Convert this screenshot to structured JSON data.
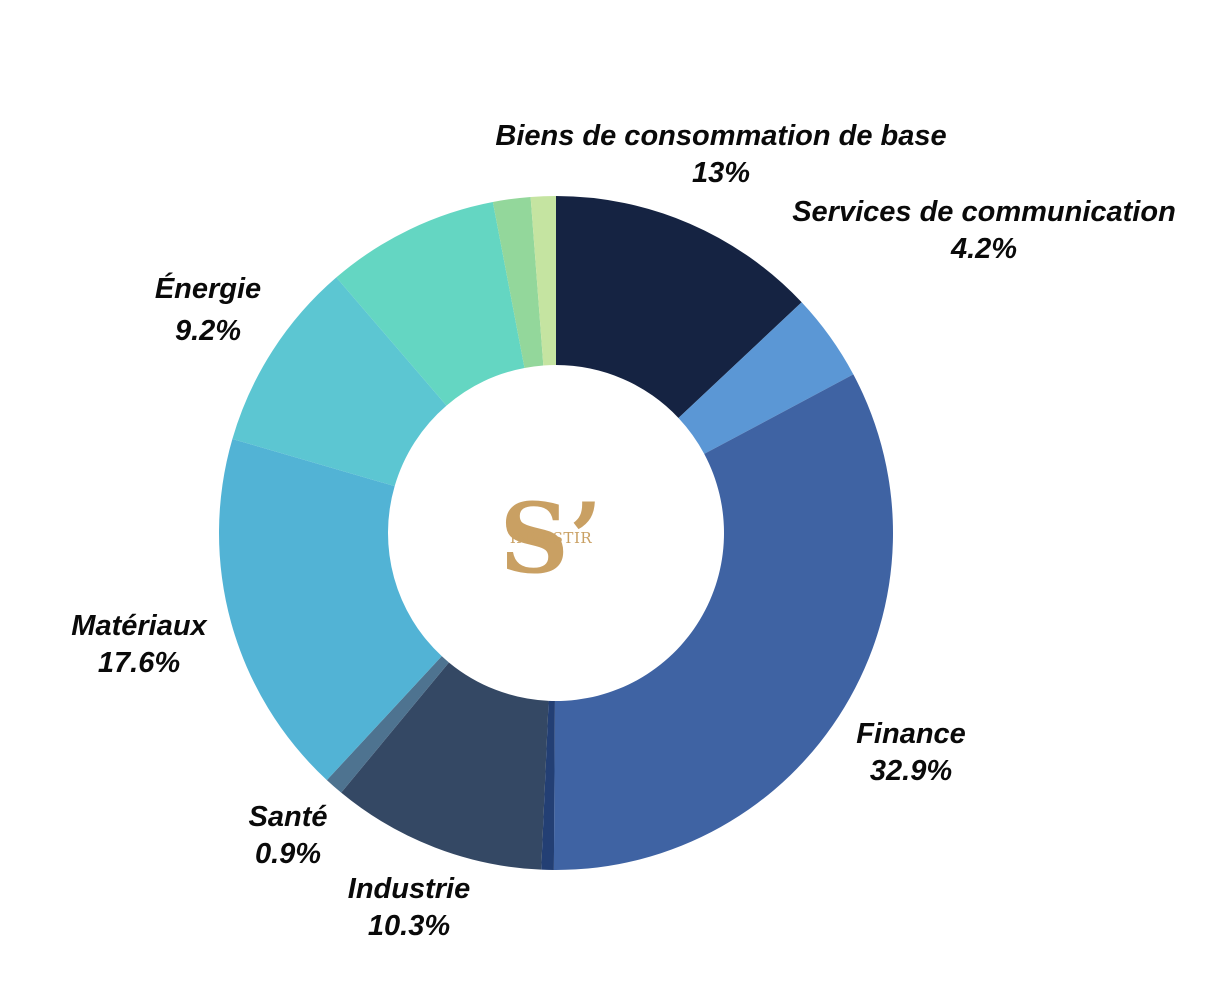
{
  "chart_data": {
    "type": "pie",
    "categories": [
      "Biens de consommation de base",
      "Services de communication",
      "Finance",
      "",
      "Industrie",
      "Santé",
      "Matériaux",
      "Énergie",
      "",
      "",
      ""
    ],
    "values": [
      13,
      4.2,
      32.9,
      0.6,
      10.3,
      0.9,
      17.6,
      9.2,
      8.3,
      1.8,
      1.2
    ],
    "labels": [
      {
        "name": "Biens de consommation de base",
        "value_label": "13%"
      },
      {
        "name": "Services de communication",
        "value_label": "4.2%"
      },
      {
        "name": "Finance",
        "value_label": "32.9%"
      },
      {
        "name": "Industrie",
        "value_label": "10.3%"
      },
      {
        "name": "Santé",
        "value_label": "0.9%"
      },
      {
        "name": "Matériaux",
        "value_label": "17.6%"
      },
      {
        "name": "Énergie",
        "value_label": "9.2%"
      }
    ],
    "colors": [
      "#152342",
      "#5b97d5",
      "#3f63a3",
      "#233f74",
      "#344864",
      "#4e7390",
      "#52b3d5",
      "#5cc6d2",
      "#64d6c2",
      "#93d79b",
      "#c5e4a1"
    ],
    "donut": true
  },
  "logo": {
    "letter": "S’",
    "word": "INVESTIR",
    "color": "#c9a063"
  }
}
